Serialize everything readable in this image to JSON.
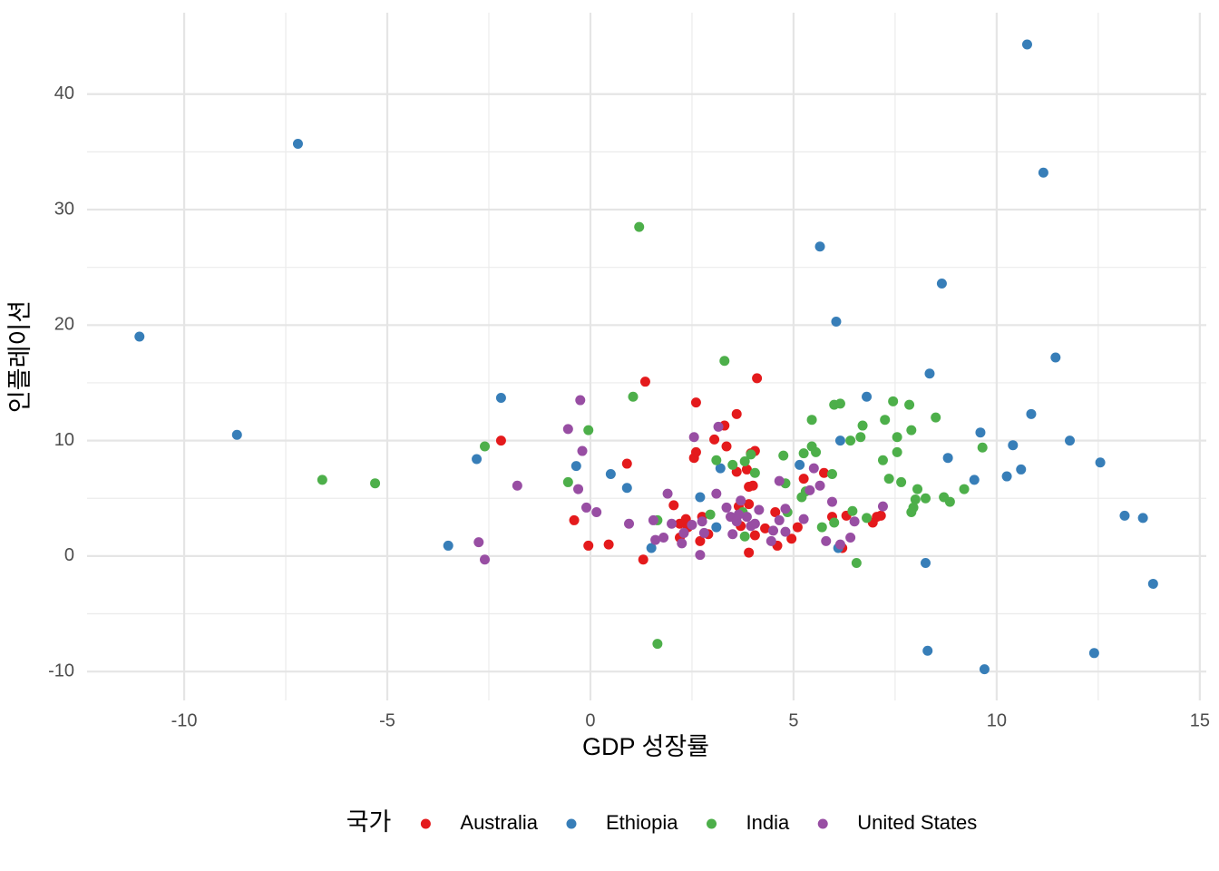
{
  "chart_data": {
    "type": "scatter",
    "x_label": "GDP 성장률",
    "y_label": "인플레이션",
    "legend_title": "국가",
    "legend_position": "bottom",
    "grid": true,
    "xlim": [
      -12.39,
      15.16
    ],
    "ylim": [
      -12.5,
      47.05
    ],
    "xticks": [
      -10,
      -5,
      0,
      5,
      10,
      15
    ],
    "yticks": [
      -10,
      0,
      10,
      20,
      30,
      40
    ],
    "series": [
      {
        "name": "Australia",
        "color": "#e41a1c",
        "x": [
          -2.2,
          -0.4,
          -0.05,
          0.45,
          0.9,
          1.3,
          1.35,
          2.05,
          2.2,
          2.35,
          2.2,
          2.55,
          2.6,
          2.6,
          2.7,
          2.75,
          2.9,
          3.05,
          3.3,
          3.35,
          3.6,
          3.6,
          3.65,
          3.85,
          3.9,
          3.9,
          3.9,
          3.95,
          4.0,
          4.05,
          4.05,
          4.1,
          4.3,
          4.55,
          4.6,
          4.95,
          5.1,
          5.25,
          5.75,
          5.95,
          6.2,
          6.3,
          6.95,
          7.05,
          7.15,
          3.7,
          2.4
        ],
        "y": [
          10,
          3.1,
          0.9,
          1,
          8,
          -0.3,
          15.1,
          4.4,
          2.8,
          3.2,
          1.6,
          8.5,
          13.3,
          9,
          1.3,
          3.4,
          1.9,
          10.1,
          11.3,
          9.5,
          7.3,
          12.3,
          4.3,
          7.5,
          4.5,
          6,
          0.3,
          8.9,
          6.1,
          9.1,
          1.8,
          15.4,
          2.4,
          3.8,
          0.9,
          1.5,
          2.5,
          6.7,
          7.2,
          3.4,
          0.7,
          3.5,
          2.9,
          3.4,
          3.5,
          2.6,
          2.5
        ]
      },
      {
        "name": "Ethiopia",
        "color": "#377eb8",
        "x": [
          -11.1,
          -8.7,
          -7.2,
          -3.5,
          -2.8,
          -2.2,
          -0.35,
          0.5,
          0.9,
          1.5,
          2.7,
          3.1,
          3.2,
          5.15,
          5.65,
          6.05,
          6.1,
          6.15,
          6.8,
          8.25,
          8.3,
          8.35,
          8.65,
          8.8,
          9.45,
          9.6,
          9.7,
          10.25,
          10.4,
          10.6,
          10.75,
          10.85,
          11.15,
          11.45,
          11.8,
          12.4,
          12.55,
          13.15,
          13.6,
          13.85
        ],
        "y": [
          19,
          10.5,
          35.7,
          0.9,
          8.4,
          13.7,
          7.8,
          7.1,
          5.9,
          0.7,
          5.1,
          2.5,
          7.6,
          7.9,
          26.8,
          20.3,
          0.7,
          10,
          13.8,
          -0.6,
          -8.2,
          15.8,
          23.6,
          8.5,
          6.6,
          10.7,
          -9.8,
          6.9,
          9.6,
          7.5,
          44.3,
          12.3,
          33.2,
          17.2,
          10,
          -8.4,
          8.1,
          3.5,
          3.3,
          -2.4
        ]
      },
      {
        "name": "India",
        "color": "#4daf4a",
        "x": [
          -6.6,
          -5.3,
          -2.6,
          -0.55,
          -0.05,
          1.05,
          1.2,
          1.65,
          1.65,
          2.95,
          3.1,
          3.3,
          3.5,
          3.8,
          3.8,
          3.95,
          4.05,
          3.75,
          4.75,
          4.8,
          4.85,
          5.2,
          5.25,
          5.3,
          5.45,
          5.45,
          5.55,
          5.7,
          5.95,
          6.0,
          6.0,
          6.15,
          6.4,
          6.45,
          6.55,
          6.65,
          6.7,
          6.8,
          7.2,
          7.25,
          7.35,
          7.45,
          7.55,
          7.55,
          7.65,
          7.85,
          7.9,
          7.9,
          7.95,
          8.0,
          8.05,
          8.25,
          8.5,
          8.7,
          8.85,
          9.2,
          9.65
        ],
        "y": [
          6.6,
          6.3,
          9.5,
          6.4,
          10.9,
          13.8,
          28.5,
          3.1,
          -7.6,
          3.6,
          8.3,
          16.9,
          7.9,
          8.2,
          1.7,
          8.8,
          7.2,
          3.8,
          8.7,
          6.3,
          3.8,
          5.1,
          8.9,
          5.6,
          11.8,
          9.5,
          9,
          2.5,
          7.1,
          13.1,
          2.9,
          13.2,
          10,
          3.9,
          -0.6,
          10.3,
          11.3,
          3.3,
          8.3,
          11.8,
          6.7,
          13.4,
          9,
          10.3,
          6.4,
          13.1,
          10.9,
          3.8,
          4.2,
          4.9,
          5.8,
          5,
          12,
          5.1,
          4.7,
          5.8,
          9.4
        ]
      },
      {
        "name": "United States",
        "color": "#984ea3",
        "x": [
          -2.75,
          -2.6,
          -1.8,
          -0.55,
          -0.25,
          -0.2,
          -0.3,
          -0.1,
          0.15,
          0.95,
          1.55,
          1.6,
          1.8,
          1.9,
          2.0,
          2.25,
          2.3,
          2.5,
          2.55,
          2.7,
          2.75,
          2.8,
          3.1,
          3.15,
          3.35,
          3.45,
          3.5,
          3.6,
          3.7,
          3.85,
          3.95,
          4.05,
          4.15,
          4.45,
          4.5,
          4.65,
          4.65,
          4.8,
          4.8,
          5.25,
          5.4,
          5.5,
          5.65,
          5.8,
          5.95,
          6.15,
          6.4,
          6.5,
          7.2,
          3.65
        ],
        "y": [
          1.2,
          -0.3,
          6.1,
          11,
          13.5,
          9.1,
          5.8,
          4.2,
          3.8,
          2.8,
          3.1,
          1.4,
          1.6,
          5.4,
          2.8,
          1.1,
          2,
          2.7,
          10.3,
          0.1,
          3,
          2,
          5.4,
          11.2,
          4.2,
          3.4,
          1.9,
          3,
          4.8,
          3.4,
          2.6,
          2.8,
          4,
          1.3,
          2.2,
          3.1,
          6.5,
          4.1,
          2.1,
          3.2,
          5.7,
          7.6,
          6.1,
          1.3,
          4.7,
          1,
          1.6,
          3,
          4.3,
          3.6
        ]
      }
    ]
  }
}
